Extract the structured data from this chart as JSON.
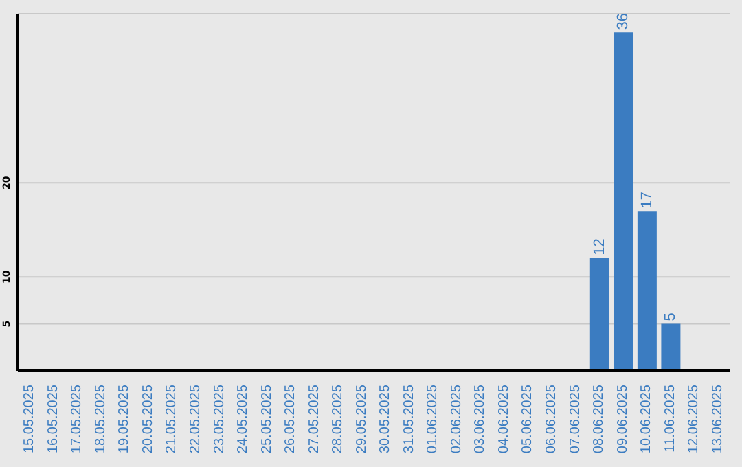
{
  "chart_data": {
    "type": "bar",
    "categories": [
      "15.05.2025",
      "16.05.2025",
      "17.05.2025",
      "18.05.2025",
      "19.05.2025",
      "20.05.2025",
      "21.05.2025",
      "22.05.2025",
      "23.05.2025",
      "24.05.2025",
      "25.05.2025",
      "26.05.2025",
      "27.05.2025",
      "28.05.2025",
      "29.05.2025",
      "30.05.2025",
      "31.05.2025",
      "01.06.2025",
      "02.06.2025",
      "03.06.2025",
      "04.06.2025",
      "05.06.2025",
      "06.06.2025",
      "07.06.2025",
      "08.06.2025",
      "09.06.2025",
      "10.06.2025",
      "11.06.2025",
      "12.06.2025",
      "13.06.2025"
    ],
    "values": [
      null,
      null,
      null,
      null,
      null,
      null,
      null,
      null,
      null,
      null,
      null,
      null,
      null,
      null,
      null,
      null,
      null,
      null,
      null,
      null,
      null,
      null,
      null,
      null,
      12,
      36,
      17,
      5,
      null,
      null
    ],
    "color": "#3b7cc1",
    "ylim": [
      0,
      38
    ],
    "yticks": [
      5,
      10,
      20
    ],
    "grid": "y",
    "data_labels": true,
    "legend": false
  }
}
